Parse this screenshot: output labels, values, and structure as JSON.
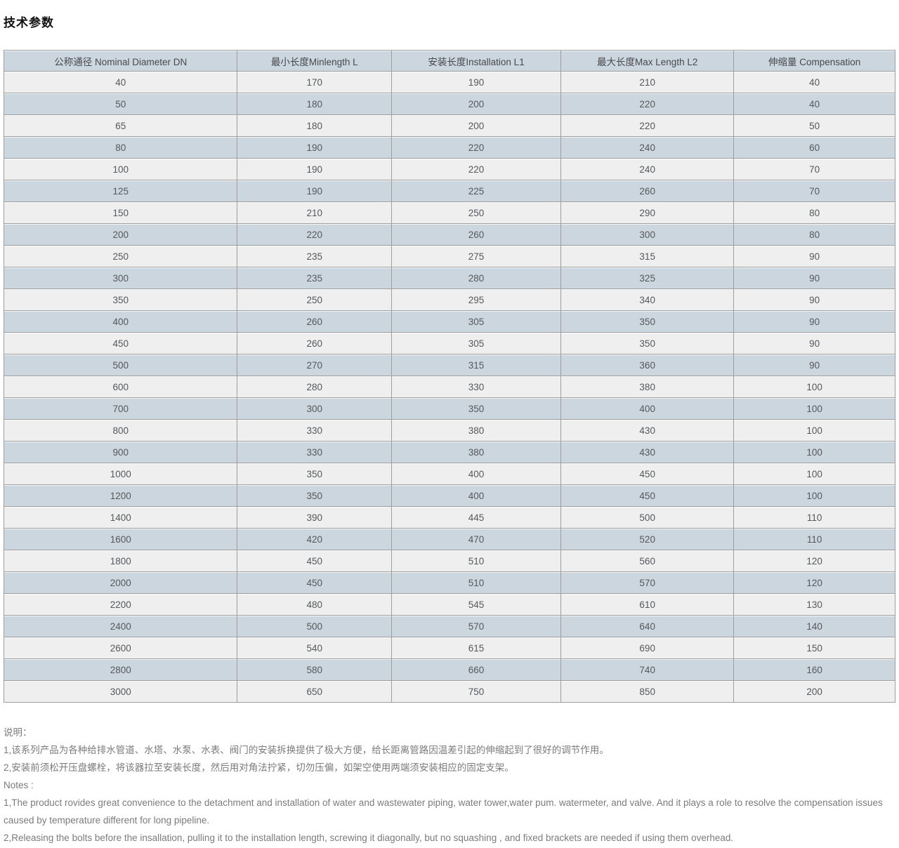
{
  "page": {
    "title": "技术参数"
  },
  "colors": {
    "header_bg": "#ccd6de",
    "row_light_bg": "#efefef",
    "row_alt_bg": "#ccd6de",
    "border": "#9e9e9e",
    "notes_text": "#7b7b7b"
  },
  "table": {
    "headers": [
      "公称通径 Nominal Diameter DN",
      "最小长度Minlength L",
      "安装长度Installation L1",
      "最大长度Max Length L2",
      "伸缩量 Compensation"
    ],
    "rows": [
      [
        "40",
        "170",
        "190",
        "210",
        "40"
      ],
      [
        "50",
        "180",
        "200",
        "220",
        "40"
      ],
      [
        "65",
        "180",
        "200",
        "220",
        "50"
      ],
      [
        "80",
        "190",
        "220",
        "240",
        "60"
      ],
      [
        "100",
        "190",
        "220",
        "240",
        "70"
      ],
      [
        "125",
        "190",
        "225",
        "260",
        "70"
      ],
      [
        "150",
        "210",
        "250",
        "290",
        "80"
      ],
      [
        "200",
        "220",
        "260",
        "300",
        "80"
      ],
      [
        "250",
        "235",
        "275",
        "315",
        "90"
      ],
      [
        "300",
        "235",
        "280",
        "325",
        "90"
      ],
      [
        "350",
        "250",
        "295",
        "340",
        "90"
      ],
      [
        "400",
        "260",
        "305",
        "350",
        "90"
      ],
      [
        "450",
        "260",
        "305",
        "350",
        "90"
      ],
      [
        "500",
        "270",
        "315",
        "360",
        "90"
      ],
      [
        "600",
        "280",
        "330",
        "380",
        "100"
      ],
      [
        "700",
        "300",
        "350",
        "400",
        "100"
      ],
      [
        "800",
        "330",
        "380",
        "430",
        "100"
      ],
      [
        "900",
        "330",
        "380",
        "430",
        "100"
      ],
      [
        "1000",
        "350",
        "400",
        "450",
        "100"
      ],
      [
        "1200",
        "350",
        "400",
        "450",
        "100"
      ],
      [
        "1400",
        "390",
        "445",
        "500",
        "110"
      ],
      [
        "1600",
        "420",
        "470",
        "520",
        "110"
      ],
      [
        "1800",
        "450",
        "510",
        "560",
        "120"
      ],
      [
        "2000",
        "450",
        "510",
        "570",
        "120"
      ],
      [
        "2200",
        "480",
        "545",
        "610",
        "130"
      ],
      [
        "2400",
        "500",
        "570",
        "640",
        "140"
      ],
      [
        "2600",
        "540",
        "615",
        "690",
        "150"
      ],
      [
        "2800",
        "580",
        "660",
        "740",
        "160"
      ],
      [
        "3000",
        "650",
        "750",
        "850",
        "200"
      ]
    ]
  },
  "notes_cn": {
    "label": "说明：",
    "items": [
      "1,该系列产品为各种给排水管道、水塔、水泵、水表、阀门的安装拆换提供了极大方便，给长距离管路因温差引起的伸缩起到了很好的调节作用。",
      "2,安装前须松开压盘螺栓，将该器拉至安装长度，然后用对角法拧紧，切勿压偏，如架空使用两端须安装相应的固定支架。"
    ]
  },
  "notes_en": {
    "label": "Notes :",
    "items": [
      "1,The product rovides great convenience to the detachment and installation of water and wastewater piping, water tower,water pum. watermeter, and valve. And it plays a role to resolve the compensation issues caused by temperature different for long pipeline.",
      "2,Releasing the bolts before the insallation, pulling it to the installation length, screwing it diagonally, but no squashing , and fixed brackets are needed if using them overhead."
    ]
  }
}
